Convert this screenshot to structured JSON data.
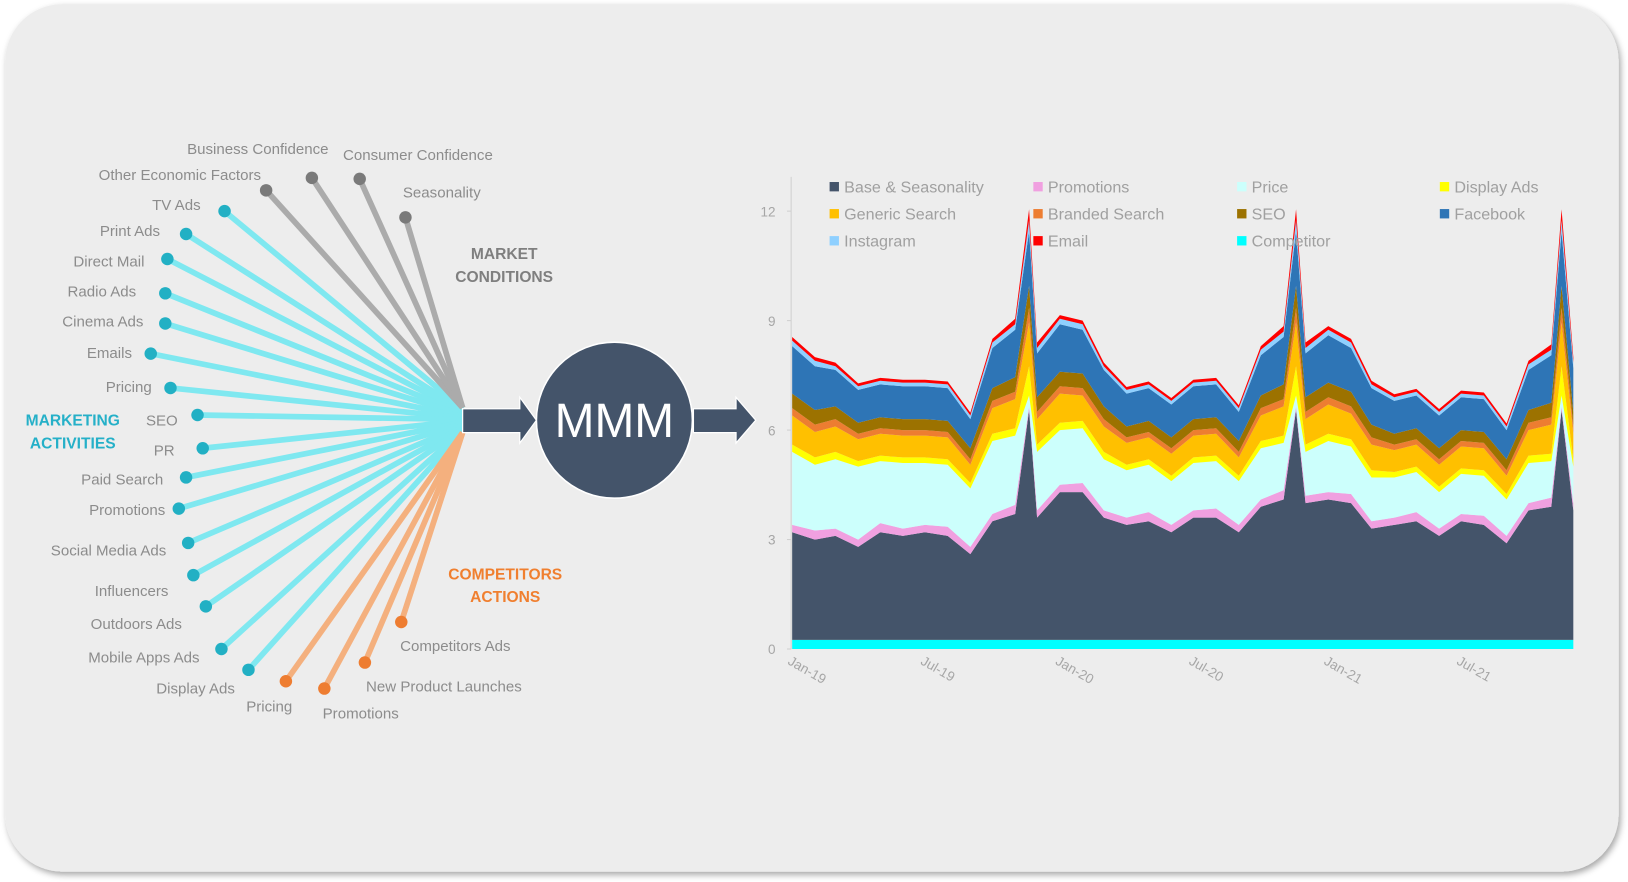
{
  "diagram": {
    "center_label": "MMM",
    "groups": {
      "market_conditions": {
        "title_lines": [
          "MARKET",
          "CONDITIONS"
        ],
        "color": "#7f7f7f",
        "line_color": "#ababab",
        "dot_color": "#7a7a7a",
        "items": [
          "Business Confidence",
          "Consumer Confidence",
          "Other Economic Factors",
          "Seasonality"
        ]
      },
      "marketing_activities": {
        "title_lines": [
          "MARKETING",
          "ACTIVITIES"
        ],
        "color": "#25b0c8",
        "line_color": "#7fe8f0",
        "dot_color": "#22b0c4",
        "items": [
          "TV Ads",
          "Print Ads",
          "Direct Mail",
          "Radio Ads",
          "Cinema Ads",
          "Emails",
          "Pricing",
          "SEO",
          "PR",
          "Paid Search",
          "Promotions",
          "Social Media Ads",
          "Influencers",
          "Outdoors Ads",
          "Mobile Apps Ads",
          "Display Ads"
        ]
      },
      "competitors_actions": {
        "title_lines": [
          "COMPETITORS",
          "ACTIONS"
        ],
        "color": "#f07f2f",
        "line_color": "#f4b07e",
        "dot_color": "#ee7d31",
        "items": [
          "Pricing",
          "Promotions",
          "New Product Launches",
          "Competitors Ads"
        ]
      }
    },
    "node_color": "#44546a"
  },
  "chart_data": {
    "type": "area",
    "stacked": true,
    "title": "",
    "xlabel": "",
    "ylabel": "",
    "ylim": [
      0,
      12
    ],
    "yticks": [
      0,
      3,
      6,
      9,
      12
    ],
    "xtick_labels": [
      "Jan-19",
      "Jul-19",
      "Jan-20",
      "Jul-20",
      "Jan-21",
      "Jul-21"
    ],
    "xtick_dates": [
      "2019-01-01",
      "2019-07-01",
      "2020-01-01",
      "2020-07-01",
      "2021-01-01",
      "2021-07-01"
    ],
    "grid": false,
    "legend_position": "top",
    "x": [
      "2019-01-01",
      "2019-02-01",
      "2019-03-01",
      "2019-04-01",
      "2019-05-01",
      "2019-06-01",
      "2019-07-01",
      "2019-08-01",
      "2019-09-01",
      "2019-10-01",
      "2019-11-01",
      "2019-11-20",
      "2019-12-01",
      "2020-01-01",
      "2020-02-01",
      "2020-03-01",
      "2020-04-01",
      "2020-05-01",
      "2020-06-01",
      "2020-07-01",
      "2020-08-01",
      "2020-09-01",
      "2020-10-01",
      "2020-11-01",
      "2020-11-18",
      "2020-12-01",
      "2021-01-01",
      "2021-02-01",
      "2021-03-01",
      "2021-04-01",
      "2021-05-01",
      "2021-06-01",
      "2021-07-01",
      "2021-08-01",
      "2021-09-01",
      "2021-10-01",
      "2021-11-01",
      "2021-11-15",
      "2021-12-01"
    ],
    "series": [
      {
        "name": "Competitor",
        "color": "#00ffff",
        "values": [
          0.25,
          0.25,
          0.25,
          0.25,
          0.25,
          0.25,
          0.25,
          0.25,
          0.25,
          0.25,
          0.25,
          0.25,
          0.25,
          0.25,
          0.25,
          0.25,
          0.25,
          0.25,
          0.25,
          0.25,
          0.25,
          0.25,
          0.25,
          0.25,
          0.25,
          0.25,
          0.25,
          0.25,
          0.25,
          0.25,
          0.25,
          0.25,
          0.25,
          0.25,
          0.25,
          0.25,
          0.25,
          0.25,
          0.25
        ]
      },
      {
        "name": "Base & Seasonality",
        "color": "#44546a",
        "values": [
          2.95,
          2.75,
          2.85,
          2.55,
          2.95,
          2.85,
          2.95,
          2.85,
          2.35,
          3.25,
          3.45,
          6.3,
          3.35,
          4.05,
          4.05,
          3.35,
          3.15,
          3.25,
          2.95,
          3.35,
          3.35,
          2.95,
          3.65,
          3.85,
          6.3,
          3.75,
          3.85,
          3.75,
          3.05,
          3.15,
          3.25,
          2.85,
          3.25,
          3.15,
          2.65,
          3.55,
          3.65,
          6.3,
          3.55
        ]
      },
      {
        "name": "Promotions",
        "color": "#f0a0e0",
        "values": [
          0.2,
          0.25,
          0.2,
          0.2,
          0.25,
          0.2,
          0.2,
          0.25,
          0.2,
          0.2,
          0.25,
          0.1,
          0.2,
          0.2,
          0.25,
          0.2,
          0.2,
          0.25,
          0.2,
          0.2,
          0.25,
          0.2,
          0.2,
          0.25,
          0.1,
          0.2,
          0.2,
          0.25,
          0.2,
          0.2,
          0.25,
          0.2,
          0.2,
          0.25,
          0.2,
          0.2,
          0.25,
          0.1,
          0.2
        ]
      },
      {
        "name": "Price",
        "color": "#ccfffc",
        "values": [
          2.0,
          1.8,
          1.9,
          2.0,
          1.7,
          1.8,
          1.7,
          1.7,
          1.6,
          2.0,
          1.9,
          0.3,
          1.6,
          1.5,
          1.5,
          1.4,
          1.3,
          1.3,
          1.2,
          1.3,
          1.3,
          1.2,
          1.4,
          1.3,
          0.3,
          1.2,
          1.4,
          1.3,
          1.2,
          1.1,
          1.1,
          1.0,
          1.1,
          1.1,
          1.0,
          1.1,
          1.0,
          0.3,
          1.0
        ]
      },
      {
        "name": "Display Ads",
        "color": "#ffff00",
        "values": [
          0.2,
          0.2,
          0.2,
          0.15,
          0.15,
          0.15,
          0.15,
          0.15,
          0.15,
          0.2,
          0.2,
          0.8,
          0.2,
          0.2,
          0.2,
          0.2,
          0.15,
          0.15,
          0.15,
          0.15,
          0.15,
          0.15,
          0.2,
          0.2,
          0.8,
          0.2,
          0.2,
          0.2,
          0.2,
          0.15,
          0.15,
          0.15,
          0.15,
          0.15,
          0.15,
          0.2,
          0.2,
          0.8,
          0.2
        ]
      },
      {
        "name": "Generic Search",
        "color": "#ffc000",
        "values": [
          0.8,
          0.7,
          0.7,
          0.6,
          0.6,
          0.6,
          0.6,
          0.6,
          0.5,
          0.7,
          0.8,
          1.2,
          0.7,
          0.8,
          0.7,
          0.7,
          0.6,
          0.6,
          0.6,
          0.6,
          0.6,
          0.5,
          0.7,
          0.8,
          1.2,
          0.7,
          0.8,
          0.7,
          0.7,
          0.6,
          0.6,
          0.6,
          0.6,
          0.6,
          0.5,
          0.7,
          0.8,
          1.2,
          0.7
        ]
      },
      {
        "name": "Branded Search",
        "color": "#ed7d31",
        "values": [
          0.2,
          0.2,
          0.2,
          0.15,
          0.15,
          0.15,
          0.15,
          0.15,
          0.15,
          0.2,
          0.2,
          0.4,
          0.2,
          0.2,
          0.2,
          0.2,
          0.15,
          0.15,
          0.15,
          0.15,
          0.15,
          0.15,
          0.2,
          0.2,
          0.4,
          0.2,
          0.2,
          0.2,
          0.2,
          0.15,
          0.15,
          0.15,
          0.15,
          0.15,
          0.15,
          0.2,
          0.2,
          0.4,
          0.2
        ]
      },
      {
        "name": "SEO",
        "color": "#9c7200",
        "values": [
          0.4,
          0.4,
          0.35,
          0.3,
          0.3,
          0.3,
          0.3,
          0.3,
          0.3,
          0.35,
          0.4,
          0.6,
          0.4,
          0.4,
          0.4,
          0.35,
          0.3,
          0.3,
          0.3,
          0.3,
          0.3,
          0.3,
          0.35,
          0.4,
          0.6,
          0.4,
          0.4,
          0.4,
          0.35,
          0.3,
          0.3,
          0.3,
          0.3,
          0.3,
          0.3,
          0.35,
          0.4,
          0.6,
          0.4
        ]
      },
      {
        "name": "Facebook",
        "color": "#2e75b6",
        "values": [
          1.3,
          1.2,
          1.0,
          0.9,
          0.9,
          0.9,
          0.9,
          0.9,
          0.8,
          1.1,
          1.3,
          1.5,
          1.2,
          1.3,
          1.2,
          1.0,
          0.9,
          0.9,
          0.9,
          0.9,
          0.9,
          0.8,
          1.1,
          1.3,
          1.5,
          1.2,
          1.3,
          1.2,
          1.0,
          0.9,
          0.9,
          0.9,
          0.9,
          0.9,
          0.8,
          1.1,
          1.3,
          1.5,
          1.2
        ]
      },
      {
        "name": "Instagram",
        "color": "#8fd0ff",
        "values": [
          0.15,
          0.15,
          0.1,
          0.1,
          0.1,
          0.1,
          0.1,
          0.1,
          0.1,
          0.15,
          0.15,
          0.3,
          0.15,
          0.15,
          0.15,
          0.1,
          0.1,
          0.1,
          0.1,
          0.1,
          0.1,
          0.1,
          0.15,
          0.15,
          0.3,
          0.15,
          0.15,
          0.15,
          0.1,
          0.1,
          0.1,
          0.1,
          0.1,
          0.1,
          0.1,
          0.15,
          0.15,
          0.3,
          0.15
        ]
      },
      {
        "name": "Email",
        "color": "#ff0000",
        "values": [
          0.1,
          0.1,
          0.1,
          0.08,
          0.08,
          0.08,
          0.08,
          0.08,
          0.08,
          0.1,
          0.15,
          0.3,
          0.15,
          0.1,
          0.1,
          0.1,
          0.08,
          0.08,
          0.08,
          0.08,
          0.08,
          0.08,
          0.1,
          0.15,
          0.3,
          0.15,
          0.1,
          0.1,
          0.1,
          0.08,
          0.08,
          0.08,
          0.08,
          0.08,
          0.08,
          0.1,
          0.15,
          0.3,
          0.15
        ]
      }
    ],
    "legend_order": [
      "Base & Seasonality",
      "Promotions",
      "Price",
      "Display Ads",
      "Generic Search",
      "Branded Search",
      "SEO",
      "Facebook",
      "Instagram",
      "Email",
      "Competitor"
    ]
  }
}
